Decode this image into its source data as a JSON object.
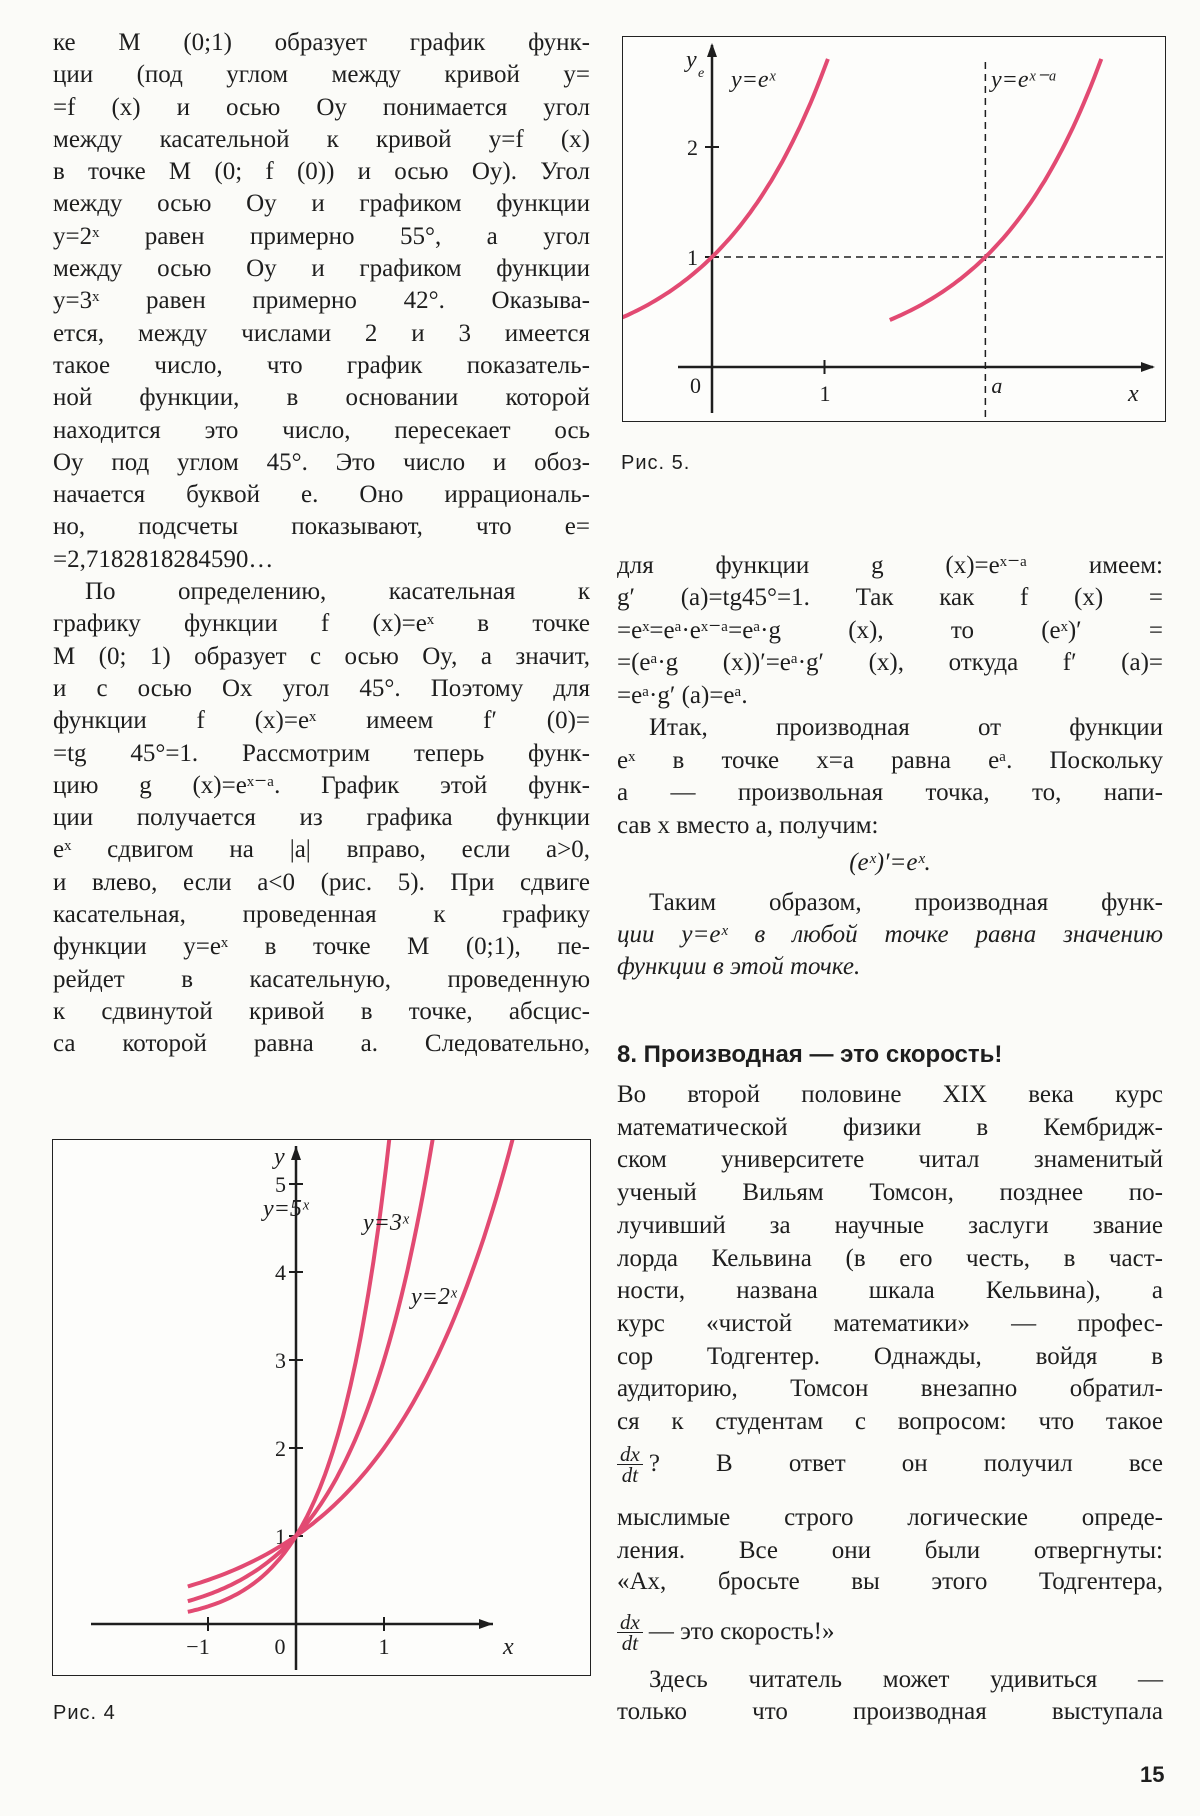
{
  "left_column": [
    "ке M (0;1) образует график функ-",
    "ции (под углом между кривой y=",
    "=f (x) и осью Oy понимается угол",
    "между касательной к кривой y=f (x)",
    "в точке M (0; f (0)) и осью Oy). Угол",
    "между осью Oy и графиком функции",
    "y=2ˣ равен примерно 55°, а угол",
    "между осью Oy и графиком функции",
    "y=3ˣ равен примерно 42°. Оказыва-",
    "ется, между числами 2 и 3 имеется",
    "такое число, что график показатель-",
    "ной функции, в основании которой",
    "находится это число, пересекает ось",
    "Oy под углом 45°. Это число и обоз-",
    "начается буквой e. Оно иррациональ-",
    "но, подсчеты показывают, что e=",
    "=2,7182818284590…",
    "По определению, касательная к",
    "графику функции f (x)=eˣ в точке",
    "M (0; 1) образует с осью Oy, а значит,",
    "и с осью Ox угол 45°. Поэтому для",
    "функции f (x)=eˣ имеем f′ (0)=",
    "=tg 45°=1. Рассмотрим теперь функ-",
    "цию g (x)=eˣ⁻ᵃ. График этой функ-",
    "ции получается из графика функции",
    "eˣ сдвигом на |a| вправо, если a>0,",
    "и влево, если a<0 (рис. 5). При сдвиге",
    "касательная, проведенная к графику",
    "функции y=eˣ в точке M (0;1), пе-",
    "рейдет в касательную, проведенную",
    "к сдвинутой кривой в точке, абсцис-",
    "са которой равна a. Следовательно,"
  ],
  "right_column": {
    "para1": [
      "для функции g (x)=eˣ⁻ᵃ имеем:",
      "g′ (a)=tg45°=1. Так как f (x) =",
      "=eˣ=eᵃ·eˣ⁻ᵃ=eᵃ·g (x), то (eˣ)′ =",
      "=(eᵃ·g (x))′=eᵃ·g′ (x), откуда f′ (a)=",
      "=eᵃ·g′ (a)=eᵃ."
    ],
    "para2": [
      "Итак, производная от функции",
      "eˣ в точке x=a равна eᵃ. Поскольку",
      "a — произвольная точка, то, напи-",
      "сав x вместо a, получим:"
    ],
    "formula": "(eˣ)′=eˣ.",
    "para3": [
      "Таким образом, производная функ-",
      "ции y=eˣ в любой точке равна значению",
      "функции в этой точке."
    ],
    "heading": "8. Производная — это скорость!",
    "para4": [
      "Во второй половине XIX века курс",
      "математической физики в Кембридж-",
      "ском университете читал знаменитый",
      "ученый Вильям Томсон, позднее по-",
      "лучивший за научные заслуги звание",
      "лорда Кельвина (в его честь, в част-",
      "ности, названа шкала Кельвина), а",
      "курс «чистой математики» — профес-",
      "сор Тодгентер. Однажды, войдя в",
      "аудиторию, Томсон внезапно обратил-",
      "ся к студентам с вопросом: что такое"
    ],
    "frac_num": "dx",
    "frac_den": "dt",
    "line_after_frac1": "? В ответ он получил все",
    "para5": [
      "мыслимые строго логические опреде-",
      "ления. Все они были отвергнуты:",
      "«Ах, бросьте вы этого Тодгентера,"
    ],
    "line_after_frac2": "— это скорость!»",
    "para6": [
      "Здесь читатель может удивиться —",
      "только что производная выступала"
    ]
  },
  "figure4": {
    "caption": "Рис. 4",
    "x_label": "x",
    "y_label": "y",
    "x_ticks": [
      "−1",
      "0",
      "1"
    ],
    "y_ticks": [
      "1",
      "2",
      "3",
      "4",
      "5"
    ],
    "curves": [
      {
        "base": 5,
        "label": "y=5ˣ"
      },
      {
        "base": 3,
        "label": "y=3ˣ"
      },
      {
        "base": 2,
        "label": "y=2ˣ"
      }
    ],
    "curve_color": "#e24a72"
  },
  "figure5": {
    "caption": "Рис. 5.",
    "x_label": "x",
    "y_label": "y",
    "y_label_sub": "e",
    "x_ticks": [
      "0",
      "1",
      "a"
    ],
    "y_ticks": [
      "1",
      "2"
    ],
    "curves": [
      {
        "label": "y=eˣ",
        "shift": 0
      },
      {
        "label": "y=eˣ⁻ᵃ",
        "shift": "a"
      }
    ],
    "curve_color": "#e24a72"
  },
  "page_number": "15"
}
